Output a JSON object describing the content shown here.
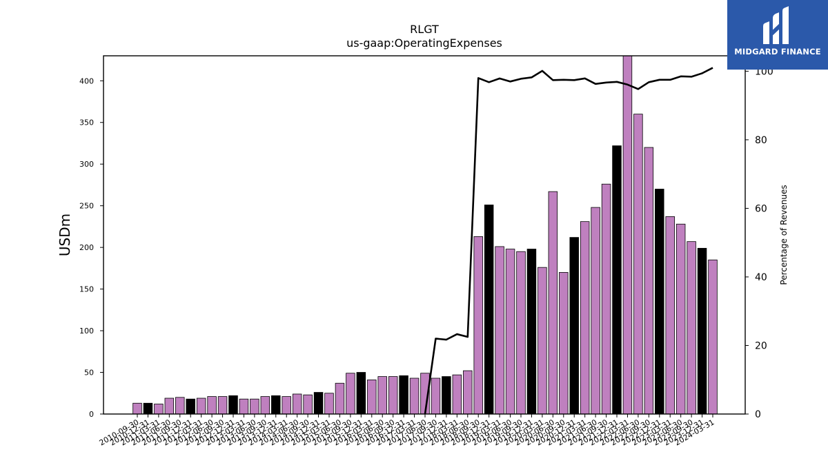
{
  "chart_data": {
    "type": "bar",
    "title": "RLGT",
    "subtitle": "us-gaap:OperatingExpenses",
    "ylabel": "USDm",
    "y2label": "Percentage of Revenues",
    "ylim": [
      0,
      430
    ],
    "y2lim": [
      0,
      104.5
    ],
    "yticks": [
      0,
      50,
      100,
      150,
      200,
      250,
      300,
      350,
      400
    ],
    "y2ticks": [
      0,
      20,
      40,
      60,
      80,
      100
    ],
    "colors": {
      "quarter": "#bf80bf",
      "fiscal_year": "#000000",
      "line": "#000000"
    },
    "categories": [
      "2010-09-30",
      "2010-12-31",
      "2011-03-31",
      "2011-06-30",
      "2011-09-30",
      "2011-12-31",
      "2012-03-31",
      "2012-06-30",
      "2012-09-30",
      "2012-12-31",
      "2013-03-31",
      "2013-06-30",
      "2013-09-30",
      "2013-12-31",
      "2014-03-31",
      "2014-06-30",
      "2014-09-30",
      "2014-12-31",
      "2015-03-31",
      "2015-06-30",
      "2015-09-30",
      "2015-12-31",
      "2016-03-31",
      "2016-06-30",
      "2016-09-30",
      "2016-12-31",
      "2017-03-31",
      "2017-06-30",
      "2017-09-30",
      "2017-12-31",
      "2018-03-31",
      "2018-06-30",
      "2018-09-30",
      "2018-12-31",
      "2019-03-31",
      "2019-06-30",
      "2019-09-30",
      "2019-12-31",
      "2020-03-31",
      "2020-06-30",
      "2020-09-30",
      "2020-12-31",
      "2021-03-31",
      "2021-06-30",
      "2021-09-30",
      "2021-12-31",
      "2022-03-31",
      "2022-06-30",
      "2022-09-30",
      "2022-12-31",
      "2023-03-31",
      "2023-06-30",
      "2023-09-30",
      "2023-12-31",
      "2024-03-31"
    ],
    "xtick_labels": [
      "2010-09-30",
      "2010-12-31",
      "2011-03-31",
      "2011-06-30",
      "2011-09-30",
      "2011-12-31",
      "2012-03-31",
      "2012-06-30",
      "2012-09-30",
      "2012-12-31",
      "2013-03-31",
      "2013-06-30",
      "2013-09-30",
      "2013-12-31",
      "2014-03-31",
      "2014-06-30",
      "2014-09-30",
      "2014-12-31",
      "2015-03-31",
      "2015-06-30",
      "2015-09-30",
      "2015-12-31",
      "2016-03-31",
      "2016-06-30",
      "2016-09-30",
      "2016-12-31",
      "2017-03-31",
      "2017-06-30",
      "2017-09-30",
      "2017-12-31",
      "2018-03-31",
      "2018-06-30",
      "2018-09-30",
      "2018-12-31",
      "2019-03-31",
      "2019-06-30",
      "2019-09-30",
      "2019-12-31",
      "2020-03-31",
      "2020-06-30",
      "2020-09-30",
      "2020-12-31",
      "2021-03-31",
      "2021-06-30",
      "2021-09-30",
      "2021-12-31",
      "2022-03-31",
      "2022-06-30",
      "2022-09-30",
      "2022-12-31",
      "2023-03-31",
      "2023-06-30",
      "2023-09-30",
      "2023-12-31",
      "2024-03-31"
    ],
    "values": [
      13,
      13,
      12,
      19,
      20,
      18,
      19,
      21,
      21,
      22,
      18,
      18,
      21,
      22,
      21,
      24,
      23,
      26,
      25,
      37,
      49,
      50,
      41,
      45,
      45,
      46,
      43,
      49,
      43,
      45,
      47,
      52,
      213,
      251,
      201,
      198,
      195,
      198,
      176,
      267,
      170,
      212,
      231,
      248,
      276,
      322,
      430,
      360,
      320,
      270,
      237,
      228,
      207,
      199,
      185
    ],
    "fiscal_year_end": [
      false,
      true,
      false,
      false,
      false,
      true,
      false,
      false,
      false,
      true,
      false,
      false,
      false,
      true,
      false,
      false,
      false,
      true,
      false,
      false,
      false,
      true,
      false,
      false,
      false,
      true,
      false,
      false,
      false,
      true,
      false,
      false,
      false,
      true,
      false,
      false,
      false,
      true,
      false,
      false,
      false,
      true,
      false,
      false,
      false,
      true,
      false,
      false,
      false,
      true,
      false,
      false,
      false,
      true,
      false
    ],
    "pct_of_revenues_start_index": 27,
    "pct_of_revenues": [
      0,
      22,
      21.7,
      23.3,
      22.5,
      98,
      96.8,
      97.9,
      97,
      97.8,
      98.2,
      100.1,
      97.4,
      97.5,
      97.4,
      97.9,
      96.3,
      96.7,
      96.9,
      96.1,
      94.8,
      96.8,
      97.5,
      97.5,
      98.5,
      98.4,
      99.4,
      101
    ]
  },
  "logo": {
    "text": "MIDGARD FINANCE"
  }
}
